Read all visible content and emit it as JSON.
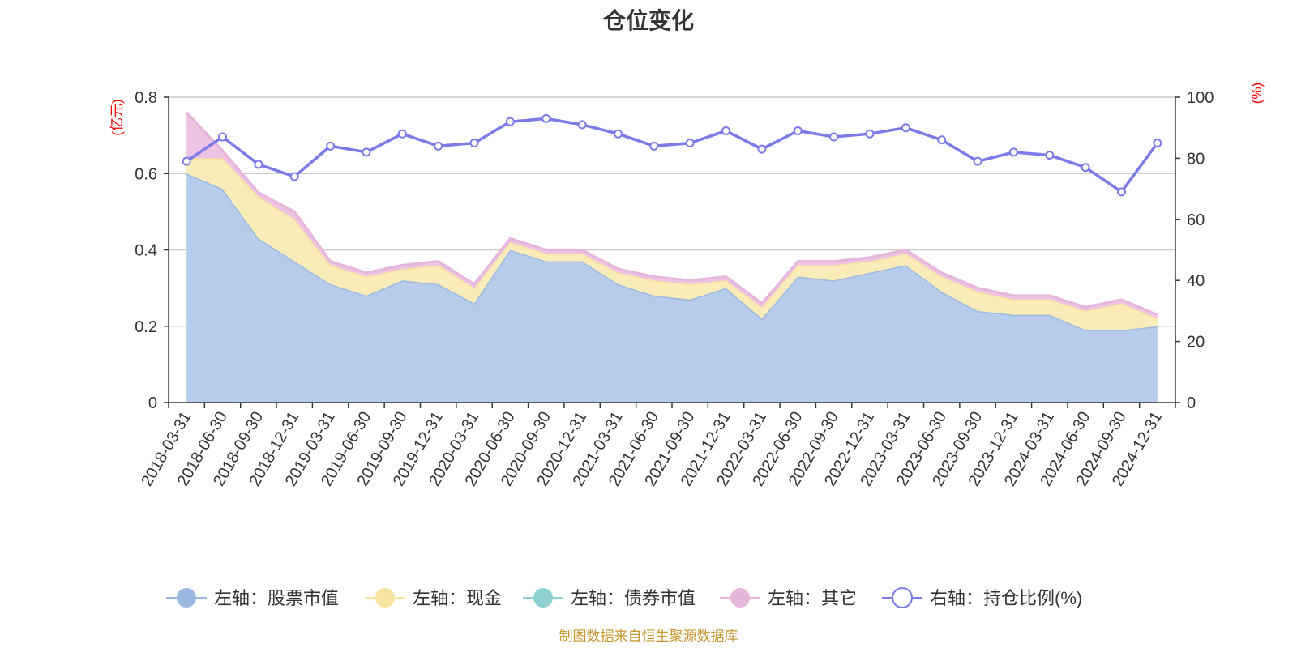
{
  "chart_data": {
    "type": "area",
    "title": "仓位变化",
    "x": [
      "2018-03-31",
      "2018-06-30",
      "2018-09-30",
      "2018-12-31",
      "2019-03-31",
      "2019-06-30",
      "2019-09-30",
      "2019-12-31",
      "2020-03-31",
      "2020-06-30",
      "2020-09-30",
      "2020-12-31",
      "2021-03-31",
      "2021-06-30",
      "2021-09-30",
      "2021-12-31",
      "2022-03-31",
      "2022-06-30",
      "2022-09-30",
      "2022-12-31",
      "2023-03-31",
      "2023-06-30",
      "2023-09-30",
      "2023-12-31",
      "2024-03-31",
      "2024-06-30",
      "2024-09-30",
      "2024-12-31"
    ],
    "left_axis": {
      "unit": "(亿元)",
      "ylim": [
        0,
        0.8
      ],
      "ticks": [
        "0",
        "0.2",
        "0.4",
        "0.6",
        "0.8"
      ]
    },
    "right_axis": {
      "unit": "(%)",
      "ylim": [
        0,
        100
      ],
      "ticks": [
        "0",
        "20",
        "40",
        "60",
        "80",
        "100"
      ]
    },
    "grid": true,
    "legend_position": "bottom",
    "series": [
      {
        "name": "左轴：股票市值",
        "axis": "left",
        "kind": "stacked-area",
        "color": "#9bb8e0",
        "fill": "#b7cceb",
        "values": [
          0.6,
          0.56,
          0.43,
          0.37,
          0.31,
          0.28,
          0.32,
          0.31,
          0.26,
          0.4,
          0.37,
          0.37,
          0.31,
          0.28,
          0.27,
          0.3,
          0.22,
          0.33,
          0.32,
          0.34,
          0.36,
          0.29,
          0.24,
          0.23,
          0.23,
          0.19,
          0.19,
          0.2
        ]
      },
      {
        "name": "左轴：现金",
        "axis": "left",
        "kind": "stacked-area",
        "color": "#f6e4a0",
        "fill": "#faecb8",
        "values": [
          0.04,
          0.08,
          0.11,
          0.11,
          0.05,
          0.05,
          0.03,
          0.05,
          0.04,
          0.02,
          0.02,
          0.02,
          0.03,
          0.04,
          0.04,
          0.02,
          0.03,
          0.03,
          0.04,
          0.03,
          0.03,
          0.04,
          0.05,
          0.04,
          0.04,
          0.05,
          0.07,
          0.02
        ]
      },
      {
        "name": "左轴：债券市值",
        "axis": "left",
        "kind": "stacked-area",
        "color": "#8fd1d1",
        "fill": "#a9dcdc",
        "values": [
          0,
          0,
          0,
          0,
          0,
          0,
          0,
          0,
          0,
          0,
          0,
          0,
          0,
          0,
          0,
          0,
          0,
          0,
          0,
          0,
          0,
          0,
          0,
          0,
          0,
          0,
          0,
          0
        ]
      },
      {
        "name": "左轴：其它",
        "axis": "left",
        "kind": "stacked-area",
        "color": "#e5b5dc",
        "fill": "#eec3e4",
        "values": [
          0.12,
          0.02,
          0.01,
          0.02,
          0.01,
          0.01,
          0.01,
          0.01,
          0.01,
          0.01,
          0.01,
          0.01,
          0.01,
          0.01,
          0.01,
          0.01,
          0.01,
          0.01,
          0.01,
          0.01,
          0.01,
          0.01,
          0.01,
          0.01,
          0.01,
          0.01,
          0.01,
          0.01
        ]
      },
      {
        "name": "右轴：持仓比例(%)",
        "axis": "right",
        "kind": "line",
        "color": "#7a7ae8",
        "values": [
          79,
          87,
          78,
          74,
          84,
          82,
          88,
          84,
          85,
          92,
          93,
          91,
          88,
          84,
          85,
          89,
          83,
          89,
          87,
          88,
          90,
          86,
          79,
          82,
          81,
          77,
          69,
          85
        ]
      }
    ]
  },
  "source_note": "制图数据来自恒生聚源数据库",
  "colors": {
    "axis": "#333333",
    "grid": "#cccccc",
    "unit": "#ff0000",
    "source": "#c8962f"
  }
}
